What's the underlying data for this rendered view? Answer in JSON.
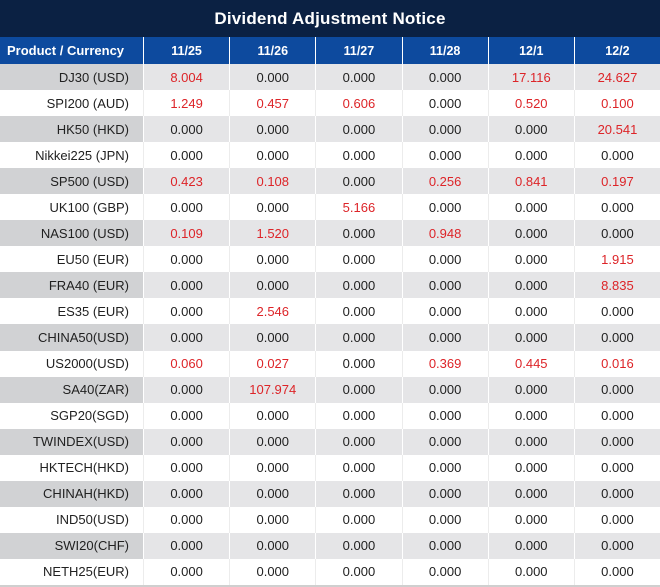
{
  "colors": {
    "title_bar": "#0b2143",
    "header": "#0d4a9e",
    "alt_row": "#e5e5e7",
    "alt_row_label": "#d1d2d4",
    "highlight": "#dd2428",
    "text": "#212121"
  },
  "chart_data": {
    "type": "table",
    "title": "Dividend Adjustment Notice",
    "columns": [
      "Product / Currency",
      "11/25",
      "11/26",
      "11/27",
      "11/28",
      "12/1",
      "12/2"
    ],
    "value_decimals": 3,
    "highlight_rule": "non-zero values rendered in red",
    "rows": [
      {
        "product": "DJ30 (USD)",
        "values": [
          8.004,
          0.0,
          0.0,
          0.0,
          17.116,
          24.627
        ]
      },
      {
        "product": "SPI200 (AUD)",
        "values": [
          1.249,
          0.457,
          0.606,
          0.0,
          0.52,
          0.1
        ]
      },
      {
        "product": "HK50 (HKD)",
        "values": [
          0.0,
          0.0,
          0.0,
          0.0,
          0.0,
          20.541
        ]
      },
      {
        "product": "Nikkei225 (JPN)",
        "values": [
          0.0,
          0.0,
          0.0,
          0.0,
          0.0,
          0.0
        ]
      },
      {
        "product": "SP500 (USD)",
        "values": [
          0.423,
          0.108,
          0.0,
          0.256,
          0.841,
          0.197
        ]
      },
      {
        "product": "UK100 (GBP)",
        "values": [
          0.0,
          0.0,
          5.166,
          0.0,
          0.0,
          0.0
        ]
      },
      {
        "product": "NAS100 (USD)",
        "values": [
          0.109,
          1.52,
          0.0,
          0.948,
          0.0,
          0.0
        ]
      },
      {
        "product": "EU50 (EUR)",
        "values": [
          0.0,
          0.0,
          0.0,
          0.0,
          0.0,
          1.915
        ]
      },
      {
        "product": "FRA40 (EUR)",
        "values": [
          0.0,
          0.0,
          0.0,
          0.0,
          0.0,
          8.835
        ]
      },
      {
        "product": "ES35 (EUR)",
        "values": [
          0.0,
          2.546,
          0.0,
          0.0,
          0.0,
          0.0
        ]
      },
      {
        "product": "CHINA50(USD)",
        "values": [
          0.0,
          0.0,
          0.0,
          0.0,
          0.0,
          0.0
        ]
      },
      {
        "product": "US2000(USD)",
        "values": [
          0.06,
          0.027,
          0.0,
          0.369,
          0.445,
          0.016
        ]
      },
      {
        "product": "SA40(ZAR)",
        "values": [
          0.0,
          107.974,
          0.0,
          0.0,
          0.0,
          0.0
        ]
      },
      {
        "product": "SGP20(SGD)",
        "values": [
          0.0,
          0.0,
          0.0,
          0.0,
          0.0,
          0.0
        ]
      },
      {
        "product": "TWINDEX(USD)",
        "values": [
          0.0,
          0.0,
          0.0,
          0.0,
          0.0,
          0.0
        ]
      },
      {
        "product": "HKTECH(HKD)",
        "values": [
          0.0,
          0.0,
          0.0,
          0.0,
          0.0,
          0.0
        ]
      },
      {
        "product": "CHINAH(HKD)",
        "values": [
          0.0,
          0.0,
          0.0,
          0.0,
          0.0,
          0.0
        ]
      },
      {
        "product": "IND50(USD)",
        "values": [
          0.0,
          0.0,
          0.0,
          0.0,
          0.0,
          0.0
        ]
      },
      {
        "product": "SWI20(CHF)",
        "values": [
          0.0,
          0.0,
          0.0,
          0.0,
          0.0,
          0.0
        ]
      },
      {
        "product": "NETH25(EUR)",
        "values": [
          0.0,
          0.0,
          0.0,
          0.0,
          0.0,
          0.0
        ]
      }
    ]
  }
}
